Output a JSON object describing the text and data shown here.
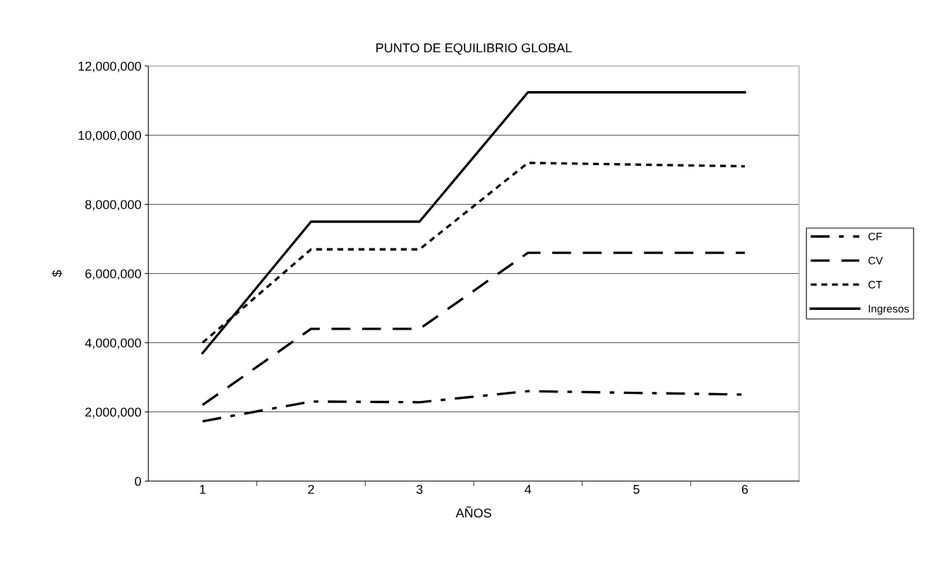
{
  "chart_data": {
    "type": "line",
    "title": "PUNTO DE EQUILIBRIO GLOBAL",
    "xlabel": "AÑOS",
    "ylabel": "$",
    "categories": [
      "1",
      "2",
      "3",
      "4",
      "5",
      "6"
    ],
    "series": [
      {
        "name": "CF",
        "color": "#000000",
        "line_style": "dashdot",
        "values": [
          1730000,
          2300000,
          2280000,
          2600000,
          2550000,
          2500000
        ]
      },
      {
        "name": "CV",
        "color": "#000000",
        "line_style": "dashed",
        "values": [
          2200000,
          4400000,
          4400000,
          6600000,
          6600000,
          6600000
        ]
      },
      {
        "name": "CT",
        "color": "#000000",
        "line_style": "dotted",
        "values": [
          4000000,
          6700000,
          6700000,
          9200000,
          9150000,
          9100000
        ]
      },
      {
        "name": "Ingresos",
        "color": "#000000",
        "line_style": "solid",
        "values": [
          3700000,
          7500000,
          7500000,
          11240000,
          11240000,
          11240000
        ]
      }
    ],
    "ylim": [
      0,
      12000000
    ],
    "yticks": [
      0,
      {
        "value": 2000000,
        "label": "2,000,000"
      },
      {
        "value": 4000000,
        "label": "4,000,000"
      },
      {
        "value": 6000000,
        "label": "6,000,000"
      },
      {
        "value": 8000000,
        "label": "8,000,000"
      },
      {
        "value": 10000000,
        "label": "10,000,000"
      },
      {
        "value": 12000000,
        "label": "12,000,000"
      }
    ],
    "grid": "y",
    "legend": "right",
    "marker": "none"
  }
}
